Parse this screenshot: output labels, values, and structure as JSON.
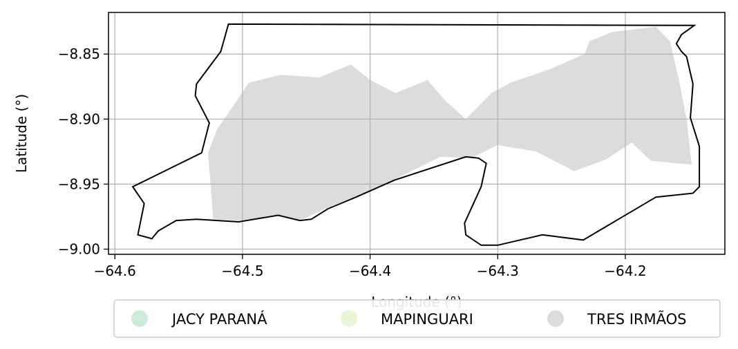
{
  "chart_data": {
    "type": "map",
    "xlabel": "Longitude (°)",
    "ylabel": "Latitude (°)",
    "xlim": [
      -64.605,
      -64.122
    ],
    "ylim": [
      -9.004,
      -8.818
    ],
    "x_ticks": [
      -64.6,
      -64.5,
      -64.4,
      -64.3,
      -64.2
    ],
    "y_ticks": [
      -8.85,
      -8.9,
      -8.95,
      -9.0
    ],
    "x_tick_labels": [
      "−64.6",
      "−64.5",
      "−64.4",
      "−64.3",
      "−64.2"
    ],
    "y_tick_labels": [
      "−8.85",
      "−8.90",
      "−8.95",
      "−9.00"
    ],
    "grid": true,
    "legend_position": "below",
    "legend": [
      {
        "label": "JACY PARANÁ",
        "color": "#cdebdd"
      },
      {
        "label": "MAPINGUARI",
        "color": "#eaf5d8"
      },
      {
        "label": "TRES IRMÃOS",
        "color": "#dcdcdc"
      }
    ],
    "boundary": [
      [
        -64.511,
        -8.827
      ],
      [
        -64.146,
        -8.828
      ],
      [
        -64.156,
        -8.835
      ],
      [
        -64.16,
        -8.842
      ],
      [
        -64.156,
        -8.848
      ],
      [
        -64.152,
        -8.852
      ],
      [
        -64.147,
        -8.873
      ],
      [
        -64.149,
        -8.899
      ],
      [
        -64.142,
        -8.921
      ],
      [
        -64.142,
        -8.934
      ],
      [
        -64.142,
        -8.952
      ],
      [
        -64.147,
        -8.957
      ],
      [
        -64.176,
        -8.96
      ],
      [
        -64.233,
        -8.993
      ],
      [
        -64.265,
        -8.989
      ],
      [
        -64.3,
        -8.997
      ],
      [
        -64.313,
        -8.997
      ],
      [
        -64.325,
        -8.989
      ],
      [
        -64.326,
        -8.98
      ],
      [
        -64.313,
        -8.952
      ],
      [
        -64.309,
        -8.934
      ],
      [
        -64.315,
        -8.93
      ],
      [
        -64.325,
        -8.929
      ],
      [
        -64.381,
        -8.947
      ],
      [
        -64.411,
        -8.96
      ],
      [
        -64.433,
        -8.969
      ],
      [
        -64.446,
        -8.977
      ],
      [
        -64.455,
        -8.978
      ],
      [
        -64.472,
        -8.974
      ],
      [
        -64.503,
        -8.979
      ],
      [
        -64.536,
        -8.977
      ],
      [
        -64.552,
        -8.978
      ],
      [
        -64.566,
        -8.986
      ],
      [
        -64.571,
        -8.992
      ],
      [
        -64.582,
        -8.989
      ],
      [
        -64.577,
        -8.965
      ],
      [
        -64.586,
        -8.952
      ],
      [
        -64.532,
        -8.926
      ],
      [
        -64.526,
        -8.903
      ],
      [
        -64.537,
        -8.882
      ],
      [
        -64.536,
        -8.873
      ],
      [
        -64.517,
        -8.848
      ]
    ],
    "areas": [
      {
        "name": "TRES IRMÃOS",
        "polygon": [
          [
            -64.527,
            -8.926
          ],
          [
            -64.52,
            -8.908
          ],
          [
            -64.506,
            -8.888
          ],
          [
            -64.495,
            -8.872
          ],
          [
            -64.47,
            -8.866
          ],
          [
            -64.44,
            -8.868
          ],
          [
            -64.415,
            -8.858
          ],
          [
            -64.4,
            -8.87
          ],
          [
            -64.38,
            -8.88
          ],
          [
            -64.355,
            -8.87
          ],
          [
            -64.34,
            -8.887
          ],
          [
            -64.325,
            -8.9
          ],
          [
            -64.305,
            -8.88
          ],
          [
            -64.29,
            -8.872
          ],
          [
            -64.26,
            -8.862
          ],
          [
            -64.232,
            -8.85
          ],
          [
            -64.228,
            -8.84
          ],
          [
            -64.21,
            -8.833
          ],
          [
            -64.176,
            -8.829
          ],
          [
            -64.165,
            -8.84
          ],
          [
            -64.158,
            -8.87
          ],
          [
            -64.152,
            -8.9
          ],
          [
            -64.148,
            -8.935
          ],
          [
            -64.16,
            -8.934
          ],
          [
            -64.18,
            -8.932
          ],
          [
            -64.195,
            -8.918
          ],
          [
            -64.215,
            -8.931
          ],
          [
            -64.24,
            -8.94
          ],
          [
            -64.27,
            -8.925
          ],
          [
            -64.3,
            -8.92
          ],
          [
            -64.321,
            -8.93
          ],
          [
            -64.345,
            -8.929
          ],
          [
            -64.38,
            -8.946
          ],
          [
            -64.41,
            -8.959
          ],
          [
            -64.433,
            -8.968
          ],
          [
            -64.455,
            -8.978
          ],
          [
            -64.472,
            -8.974
          ],
          [
            -64.503,
            -8.978
          ],
          [
            -64.523,
            -8.977
          ],
          [
            -64.525,
            -8.95
          ]
        ]
      }
    ]
  }
}
